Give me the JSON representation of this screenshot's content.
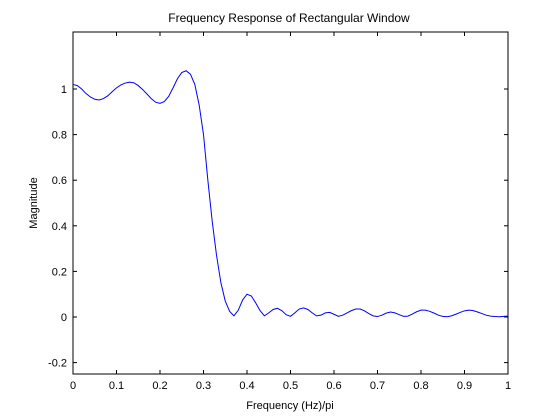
{
  "chart_data": {
    "type": "line",
    "title": "Frequency Response of Rectangular Window",
    "xlabel": "Frequency (Hz)/pi",
    "ylabel": "Magnitude",
    "xlim": [
      0,
      1
    ],
    "ylim": [
      -0.25,
      1.25
    ],
    "xticks": [
      0,
      0.1,
      0.2,
      0.3,
      0.4,
      0.5,
      0.6,
      0.7,
      0.8,
      0.9,
      1
    ],
    "xtick_labels": [
      "0",
      "0.1",
      "0.2",
      "0.3",
      "0.4",
      "0.5",
      "0.6",
      "0.7",
      "0.8",
      "0.9",
      "1"
    ],
    "yticks": [
      -0.2,
      0,
      0.2,
      0.4,
      0.6,
      0.8,
      1
    ],
    "ytick_labels": [
      "-0.2",
      "0",
      "0.2",
      "0.4",
      "0.6",
      "0.8",
      "1"
    ],
    "grid": false,
    "line_color": "#0000ff",
    "series": [
      {
        "x": [
          0,
          0.01,
          0.02,
          0.03,
          0.04,
          0.05,
          0.06,
          0.07,
          0.08,
          0.09,
          0.1,
          0.11,
          0.12,
          0.13,
          0.14,
          0.15,
          0.16,
          0.17,
          0.18,
          0.19,
          0.2,
          0.21,
          0.22,
          0.23,
          0.24,
          0.25,
          0.26,
          0.27,
          0.28,
          0.29,
          0.3,
          0.31,
          0.32,
          0.33,
          0.34,
          0.35,
          0.36,
          0.37,
          0.38,
          0.39,
          0.4,
          0.41,
          0.42,
          0.43,
          0.44,
          0.45,
          0.46,
          0.47,
          0.48,
          0.49,
          0.5,
          0.51,
          0.52,
          0.53,
          0.54,
          0.55,
          0.56,
          0.57,
          0.58,
          0.59,
          0.6,
          0.61,
          0.62,
          0.63,
          0.64,
          0.65,
          0.66,
          0.67,
          0.68,
          0.69,
          0.7,
          0.71,
          0.72,
          0.73,
          0.74,
          0.75,
          0.76,
          0.77,
          0.78,
          0.79,
          0.8,
          0.81,
          0.82,
          0.83,
          0.84,
          0.85,
          0.86,
          0.87,
          0.88,
          0.89,
          0.9,
          0.91,
          0.92,
          0.93,
          0.94,
          0.95,
          0.96,
          0.97,
          0.98,
          0.99,
          1.0
        ],
        "y": [
          1.02,
          1.015,
          1.0,
          0.98,
          0.965,
          0.955,
          0.952,
          0.958,
          0.97,
          0.988,
          1.005,
          1.018,
          1.026,
          1.03,
          1.027,
          1.015,
          0.998,
          0.978,
          0.958,
          0.942,
          0.937,
          0.945,
          0.968,
          1.005,
          1.045,
          1.072,
          1.08,
          1.065,
          1.02,
          0.93,
          0.8,
          0.6,
          0.42,
          0.27,
          0.15,
          0.07,
          0.025,
          0.005,
          0.03,
          0.075,
          0.1,
          0.092,
          0.062,
          0.028,
          0.005,
          0.018,
          0.033,
          0.038,
          0.028,
          0.01,
          0.003,
          0.018,
          0.035,
          0.04,
          0.033,
          0.018,
          0.005,
          0.008,
          0.018,
          0.02,
          0.012,
          0.003,
          0.008,
          0.018,
          0.028,
          0.035,
          0.035,
          0.027,
          0.015,
          0.005,
          0.002,
          0.008,
          0.017,
          0.022,
          0.018,
          0.01,
          0.003,
          0.004,
          0.013,
          0.023,
          0.03,
          0.03,
          0.025,
          0.017,
          0.008,
          0.003,
          0.001,
          0.005,
          0.012,
          0.02,
          0.027,
          0.03,
          0.028,
          0.022,
          0.015,
          0.008,
          0.004,
          0.002,
          0.001,
          0.003,
          0.004
        ]
      }
    ]
  }
}
